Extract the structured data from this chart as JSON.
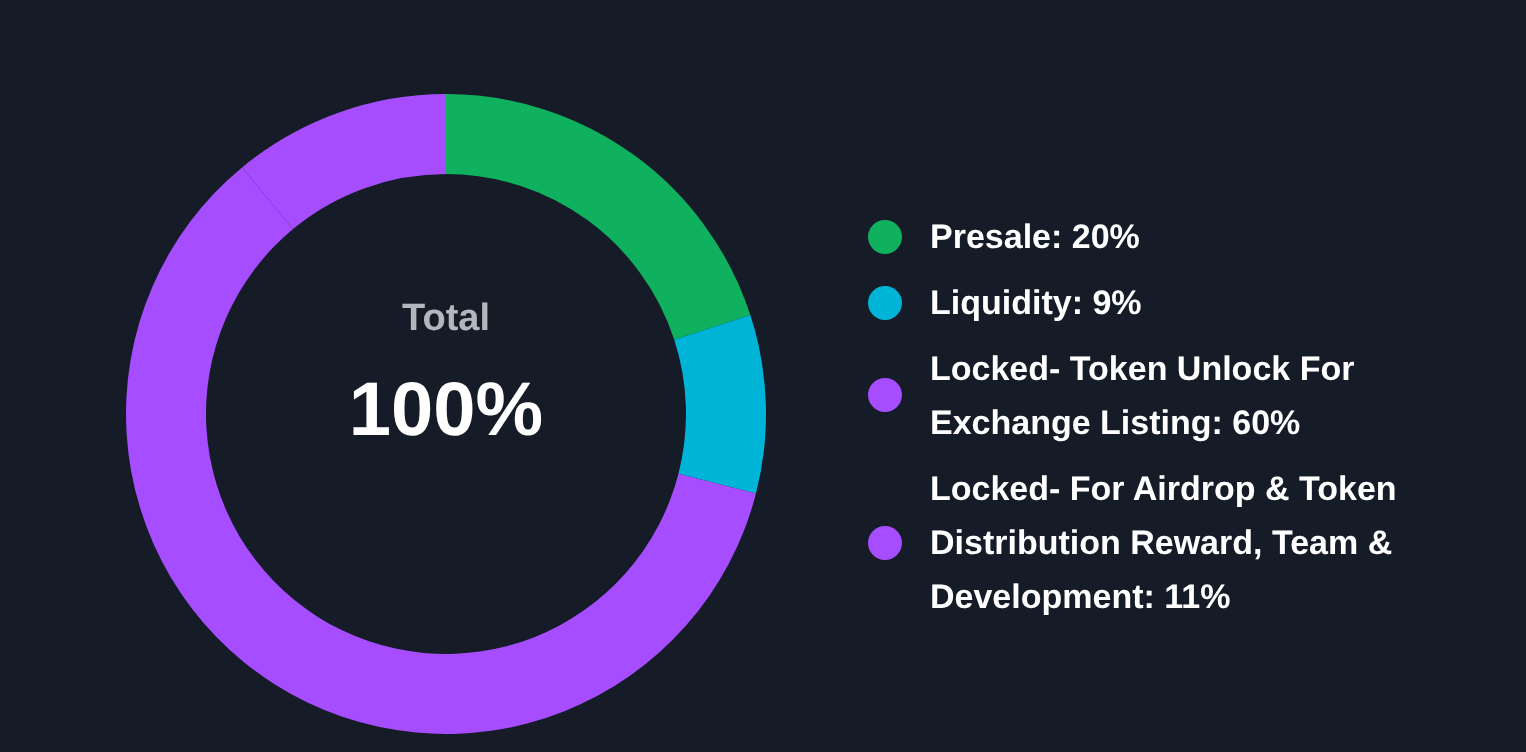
{
  "chart_data": {
    "type": "donut",
    "categories": [
      "Presale: 20%",
      "Liquidity: 9%",
      "Locked- Token Unlock For Exchange Listing: 60%",
      "Locked- For Airdrop & Token Distribution Reward, Team & Development: 11%"
    ],
    "values": [
      20,
      9,
      60,
      11
    ],
    "colors": [
      "#0fb05e",
      "#00b4d8",
      "#a64dff",
      "#a64dff"
    ],
    "annotations": [
      "Total",
      "100%"
    ],
    "legend": "right"
  }
}
